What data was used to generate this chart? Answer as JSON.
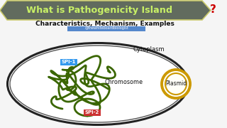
{
  "title": "What is Pathogenicity Island",
  "question_mark_color": "#cc0000",
  "title_bg_color": "#616b5e",
  "title_text_color": "#c8f066",
  "title_border_color": "#c8c86a",
  "subtitle": "Characteristics, Mechanism, Examples",
  "subtitle_color": "#111111",
  "channel_label": "@thewhiteboardbiologist",
  "channel_bg": "#5588cc",
  "bg_color": "#f5f5f5",
  "cell_bg": "#ffffff",
  "cell_border_outer": "#222222",
  "cell_border_inner": "#555555",
  "cytoplasm_label": "Cytoplasm",
  "chromosome_label": "Chromosome",
  "plasmid_label": "Plasmid",
  "spi1_label": "SPI-1",
  "spi2_label": "SPI-2",
  "spi1_bg": "#3399ee",
  "spi2_bg": "#cc3333",
  "chromosome_color": "#3a6600",
  "plasmid_border": "#cc9900",
  "plasmid_fill": "#fffff8"
}
